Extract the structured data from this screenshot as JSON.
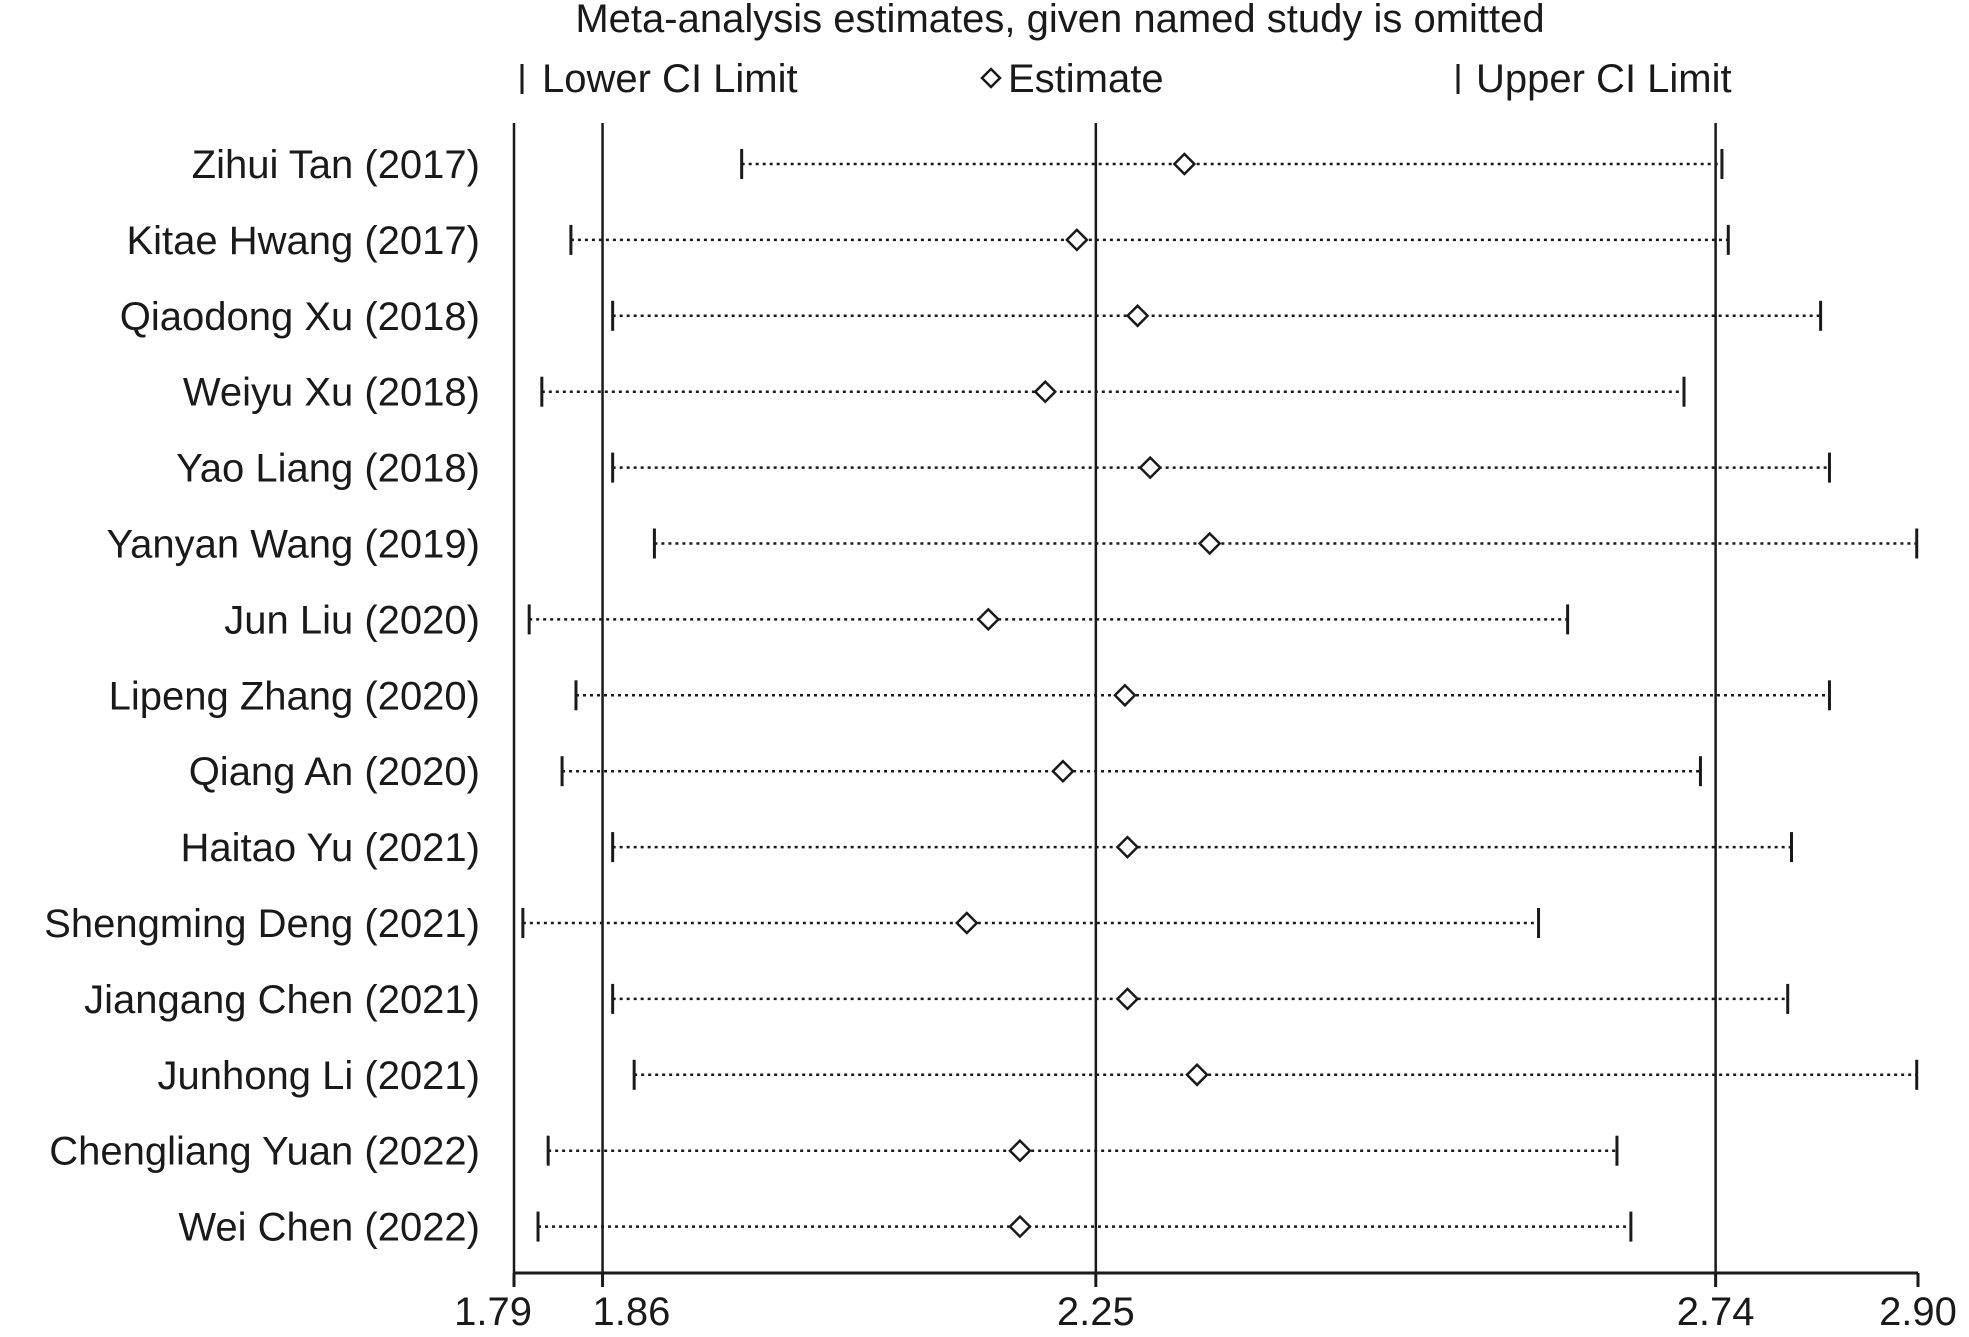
{
  "chart_data": {
    "type": "forest",
    "title": "Meta-analysis estimates, given named study is omitted",
    "legend": {
      "lower": "Lower CI Limit",
      "estimate": "Estimate",
      "upper": "Upper CI Limit"
    },
    "xlim": [
      1.79,
      2.9
    ],
    "reference_lines": [
      1.86,
      2.25,
      2.74
    ],
    "ticks": [
      {
        "value": 1.79,
        "label": "1.79"
      },
      {
        "value": 1.86,
        "label": "1.86"
      },
      {
        "value": 2.25,
        "label": "2.25"
      },
      {
        "value": 2.74,
        "label": "2.74"
      },
      {
        "value": 2.9,
        "label": "2.90"
      }
    ],
    "studies": [
      {
        "label": "Zihui Tan (2017)",
        "lower": 1.97,
        "estimate": 2.32,
        "upper": 2.745
      },
      {
        "label": "Kitae Hwang (2017)",
        "lower": 1.835,
        "estimate": 2.235,
        "upper": 2.75
      },
      {
        "label": "Qiaodong Xu (2018)",
        "lower": 1.868,
        "estimate": 2.283,
        "upper": 2.823
      },
      {
        "label": "Weiyu Xu (2018)",
        "lower": 1.812,
        "estimate": 2.21,
        "upper": 2.715
      },
      {
        "label": "Yao Liang (2018)",
        "lower": 1.868,
        "estimate": 2.293,
        "upper": 2.83
      },
      {
        "label": "Yanyan Wang (2019)",
        "lower": 1.901,
        "estimate": 2.34,
        "upper": 2.899
      },
      {
        "label": "Jun Liu (2020)",
        "lower": 1.802,
        "estimate": 2.165,
        "upper": 2.623
      },
      {
        "label": "Lipeng Zhang (2020)",
        "lower": 1.839,
        "estimate": 2.273,
        "upper": 2.83
      },
      {
        "label": "Qiang An (2020)",
        "lower": 1.828,
        "estimate": 2.224,
        "upper": 2.728
      },
      {
        "label": "Haitao Yu (2021)",
        "lower": 1.868,
        "estimate": 2.275,
        "upper": 2.8
      },
      {
        "label": "Shengming Deng (2021)",
        "lower": 1.797,
        "estimate": 2.148,
        "upper": 2.6
      },
      {
        "label": "Jiangang Chen (2021)",
        "lower": 1.868,
        "estimate": 2.275,
        "upper": 2.797
      },
      {
        "label": "Junhong Li (2021)",
        "lower": 1.885,
        "estimate": 2.33,
        "upper": 2.899
      },
      {
        "label": "Chengliang Yuan (2022)",
        "lower": 1.817,
        "estimate": 2.19,
        "upper": 2.662
      },
      {
        "label": "Wei Chen (2022)",
        "lower": 1.809,
        "estimate": 2.19,
        "upper": 2.673
      }
    ]
  }
}
